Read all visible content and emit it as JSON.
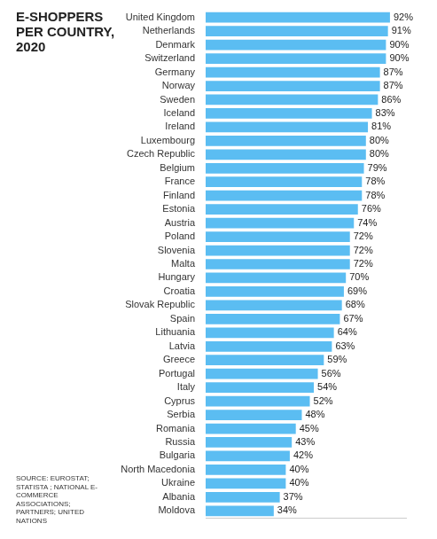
{
  "chart_data": {
    "type": "bar",
    "title": "E-SHOPPERS PER COUNTRY, 2020",
    "orientation": "horizontal",
    "categories": [
      "United Kingdom",
      "Netherlands",
      "Denmark",
      "Switzerland",
      "Germany",
      "Norway",
      "Sweden",
      "Iceland",
      "Ireland",
      "Luxembourg",
      "Czech Republic",
      "Belgium",
      "France",
      "Finland",
      "Estonia",
      "Austria",
      "Poland",
      "Slovenia",
      "Malta",
      "Hungary",
      "Croatia",
      "Slovak Republic",
      "Spain",
      "Lithuania",
      "Latvia",
      "Greece",
      "Portugal",
      "Italy",
      "Cyprus",
      "Serbia",
      "Romania",
      "Russia",
      "Bulgaria",
      "North Macedonia",
      "Ukraine",
      "Albania",
      "Moldova"
    ],
    "values": [
      92,
      91,
      90,
      90,
      87,
      87,
      86,
      83,
      81,
      80,
      80,
      79,
      78,
      78,
      76,
      74,
      72,
      72,
      72,
      70,
      69,
      68,
      67,
      64,
      63,
      59,
      56,
      54,
      52,
      48,
      45,
      43,
      42,
      40,
      40,
      37,
      34
    ],
    "value_labels": [
      "92%",
      "91%",
      "90%",
      "90%",
      "87%",
      "87%",
      "86%",
      "83%",
      "81%",
      "80%",
      "80%",
      "79%",
      "78%",
      "78%",
      "76%",
      "74%",
      "72%",
      "72%",
      "72%",
      "70%",
      "69%",
      "68%",
      "67%",
      "64%",
      "63%",
      "59%",
      "56%",
      "54%",
      "52%",
      "48%",
      "45%",
      "43%",
      "42%",
      "40%",
      "40%",
      "37%",
      "34%"
    ],
    "color": "#5bbdf2",
    "xlim": [
      0,
      100
    ],
    "grid": false,
    "data_labels": true,
    "tick_labels": "y",
    "annotations": [
      "SOURCE: EUROSTAT; STATISTA ; NATIONAL E-COMMERCE ASSOCIATIONS; PARTNERS; UNITED NATIONS"
    ]
  }
}
